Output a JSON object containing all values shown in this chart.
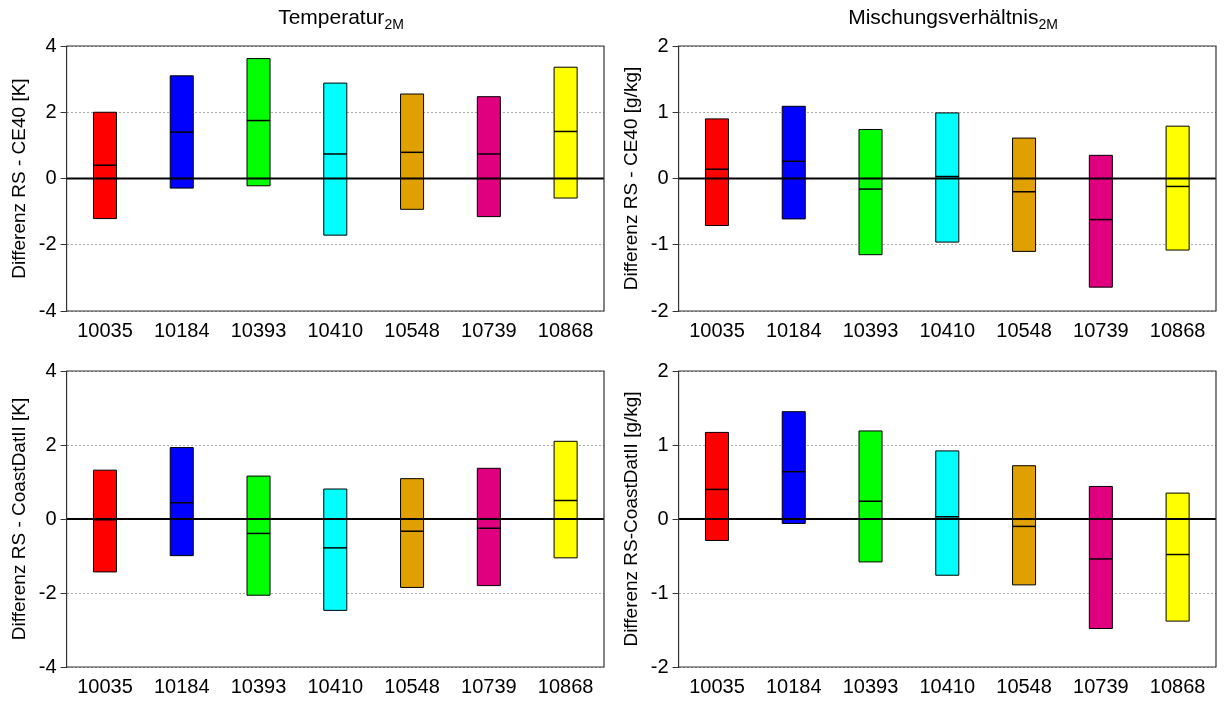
{
  "chart_data": [
    {
      "type": "box",
      "title": "Temperatur$_{2M}$",
      "ylabel": "Differenz RS - CE40 [K]",
      "categories": [
        "10035",
        "10184",
        "10393",
        "10410",
        "10548",
        "10739",
        "10868"
      ],
      "colors": [
        "#ff0000",
        "#0000ff",
        "#00ff00",
        "#00ffff",
        "#e0a000",
        "#e0007f",
        "#ffff00"
      ],
      "boxes": [
        {
          "low": -1.21,
          "q1": -1.21,
          "median": 0.4,
          "q3": 2.0,
          "high": 2.0
        },
        {
          "low": -0.29,
          "q1": -0.29,
          "median": 1.4,
          "q3": 3.1,
          "high": 3.1
        },
        {
          "low": -0.22,
          "q1": -0.22,
          "median": 1.75,
          "q3": 3.62,
          "high": 3.62
        },
        {
          "low": -1.71,
          "q1": -1.71,
          "median": 0.74,
          "q3": 2.88,
          "high": 2.88
        },
        {
          "low": -0.93,
          "q1": -0.93,
          "median": 0.79,
          "q3": 2.55,
          "high": 2.55
        },
        {
          "low": -1.15,
          "q1": -1.15,
          "median": 0.74,
          "q3": 2.47,
          "high": 2.47
        },
        {
          "low": -0.59,
          "q1": -0.59,
          "median": 1.42,
          "q3": 3.36,
          "high": 3.36
        }
      ],
      "ylim": [
        -4,
        4
      ],
      "yticks": [
        -4,
        -2,
        0,
        2,
        4
      ],
      "grid": "y",
      "ref_lines": [
        {
          "axis": "y",
          "value": 0,
          "color": "#000000"
        }
      ]
    },
    {
      "type": "box",
      "title": "Mischungsverhältnis$_{2M}$",
      "ylabel": "Differenz RS - CE40 [g/kg]",
      "categories": [
        "10035",
        "10184",
        "10393",
        "10410",
        "10548",
        "10739",
        "10868"
      ],
      "colors": [
        "#ff0000",
        "#0000ff",
        "#00ff00",
        "#00ffff",
        "#e0a000",
        "#e0007f",
        "#ffff00"
      ],
      "boxes": [
        {
          "low": -0.71,
          "q1": -0.71,
          "median": 0.14,
          "q3": 0.9,
          "high": 0.9
        },
        {
          "low": -0.61,
          "q1": -0.61,
          "median": 0.26,
          "q3": 1.09,
          "high": 1.09
        },
        {
          "low": -1.15,
          "q1": -1.15,
          "median": -0.16,
          "q3": 0.74,
          "high": 0.74
        },
        {
          "low": -0.96,
          "q1": -0.96,
          "median": 0.03,
          "q3": 0.99,
          "high": 0.99
        },
        {
          "low": -1.1,
          "q1": -1.1,
          "median": -0.2,
          "q3": 0.61,
          "high": 0.61
        },
        {
          "low": -1.64,
          "q1": -1.64,
          "median": -0.62,
          "q3": 0.35,
          "high": 0.35
        },
        {
          "low": -1.08,
          "q1": -1.08,
          "median": -0.12,
          "q3": 0.79,
          "high": 0.79
        }
      ],
      "ylim": [
        -2,
        2
      ],
      "yticks": [
        -2,
        -1,
        0,
        1,
        2
      ],
      "grid": "y",
      "ref_lines": [
        {
          "axis": "y",
          "value": 0,
          "color": "#000000"
        }
      ]
    },
    {
      "type": "box",
      "ylabel": "Differenz RS - CoastDatII [K]",
      "categories": [
        "10035",
        "10184",
        "10393",
        "10410",
        "10548",
        "10739",
        "10868"
      ],
      "colors": [
        "#ff0000",
        "#0000ff",
        "#00ff00",
        "#00ffff",
        "#e0a000",
        "#e0007f",
        "#ffff00"
      ],
      "boxes": [
        {
          "low": -1.43,
          "q1": -1.43,
          "median": -0.02,
          "q3": 1.32,
          "high": 1.32
        },
        {
          "low": -0.99,
          "q1": -0.99,
          "median": 0.44,
          "q3": 1.93,
          "high": 1.93
        },
        {
          "low": -2.06,
          "q1": -2.06,
          "median": -0.39,
          "q3": 1.16,
          "high": 1.16
        },
        {
          "low": -2.47,
          "q1": -2.47,
          "median": -0.78,
          "q3": 0.81,
          "high": 0.81
        },
        {
          "low": -1.85,
          "q1": -1.85,
          "median": -0.33,
          "q3": 1.09,
          "high": 1.09
        },
        {
          "low": -1.8,
          "q1": -1.8,
          "median": -0.25,
          "q3": 1.37,
          "high": 1.37
        },
        {
          "low": -1.05,
          "q1": -1.05,
          "median": 0.5,
          "q3": 2.1,
          "high": 2.1
        }
      ],
      "ylim": [
        -4,
        4
      ],
      "yticks": [
        -4,
        -2,
        0,
        2,
        4
      ],
      "grid": "y",
      "ref_lines": [
        {
          "axis": "y",
          "value": 0,
          "color": "#000000"
        }
      ]
    },
    {
      "type": "box",
      "ylabel": "Differenz RS-CoastDatII [g/kg]",
      "categories": [
        "10035",
        "10184",
        "10393",
        "10410",
        "10548",
        "10739",
        "10868"
      ],
      "colors": [
        "#ff0000",
        "#0000ff",
        "#00ff00",
        "#00ffff",
        "#e0a000",
        "#e0007f",
        "#ffff00"
      ],
      "boxes": [
        {
          "low": -0.29,
          "q1": -0.29,
          "median": 0.4,
          "q3": 1.17,
          "high": 1.17
        },
        {
          "low": -0.06,
          "q1": -0.06,
          "median": 0.64,
          "q3": 1.45,
          "high": 1.45
        },
        {
          "low": -0.58,
          "q1": -0.58,
          "median": 0.24,
          "q3": 1.19,
          "high": 1.19
        },
        {
          "low": -0.76,
          "q1": -0.76,
          "median": 0.03,
          "q3": 0.92,
          "high": 0.92
        },
        {
          "low": -0.89,
          "q1": -0.89,
          "median": -0.1,
          "q3": 0.72,
          "high": 0.72
        },
        {
          "low": -1.48,
          "q1": -1.48,
          "median": -0.54,
          "q3": 0.44,
          "high": 0.44
        },
        {
          "low": -1.38,
          "q1": -1.38,
          "median": -0.48,
          "q3": 0.35,
          "high": 0.35
        }
      ],
      "ylim": [
        -2,
        2
      ],
      "yticks": [
        -2,
        -1,
        0,
        1,
        2
      ],
      "grid": "y",
      "ref_lines": [
        {
          "axis": "y",
          "value": 0,
          "color": "#000000"
        }
      ]
    }
  ]
}
